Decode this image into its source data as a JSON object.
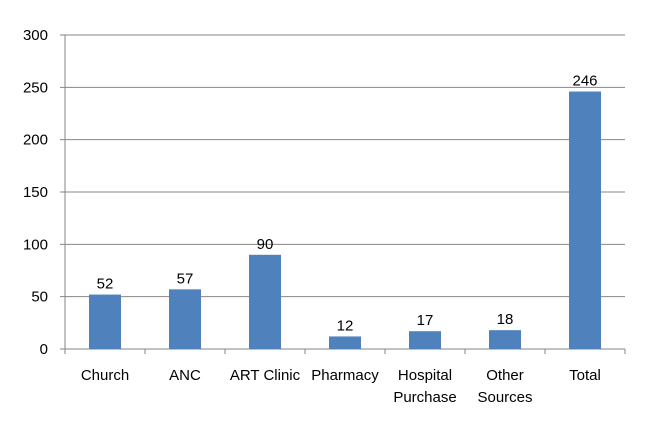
{
  "chart_data": {
    "type": "bar",
    "categories": [
      [
        "Church"
      ],
      [
        "ANC"
      ],
      [
        "ART Clinic"
      ],
      [
        "Pharmacy"
      ],
      [
        "Hospital",
        "Purchase"
      ],
      [
        "Other",
        "Sources"
      ],
      [
        "Total"
      ]
    ],
    "values": [
      52,
      57,
      90,
      12,
      17,
      18,
      246
    ],
    "data_labels": [
      "52",
      "57",
      "90",
      "12",
      "17",
      "18",
      "246"
    ],
    "y_ticks": [
      "0",
      "50",
      "100",
      "150",
      "200",
      "250",
      "300"
    ],
    "ylim": [
      0,
      300
    ],
    "ytick_step": 50,
    "grid": true,
    "legend": false,
    "bar_color": "#4f81bd",
    "title": "",
    "xlabel": "",
    "ylabel": ""
  }
}
